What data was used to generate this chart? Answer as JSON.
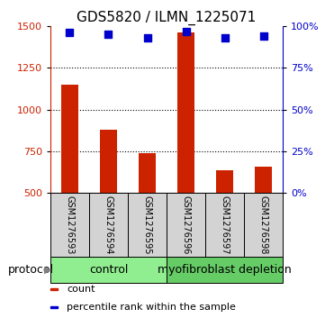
{
  "title": "GDS5820 / ILMN_1225071",
  "samples": [
    "GSM1276593",
    "GSM1276594",
    "GSM1276595",
    "GSM1276596",
    "GSM1276597",
    "GSM1276598"
  ],
  "counts": [
    1150,
    880,
    740,
    1460,
    635,
    660
  ],
  "percentile_ranks": [
    96,
    95,
    93,
    97,
    93,
    94
  ],
  "ylim_left": [
    500,
    1500
  ],
  "ylim_right": [
    0,
    100
  ],
  "yticks_left": [
    500,
    750,
    1000,
    1250,
    1500
  ],
  "yticks_right": [
    0,
    25,
    50,
    75,
    100
  ],
  "bar_color": "#cc2200",
  "dot_color": "#0000cc",
  "bar_width": 0.45,
  "groups": [
    {
      "label": "control",
      "samples": [
        0,
        1,
        2
      ],
      "color": "#90ee90"
    },
    {
      "label": "myofibroblast depletion",
      "samples": [
        3,
        4,
        5
      ],
      "color": "#66cc66"
    }
  ],
  "protocol_label": "protocol",
  "legend_items": [
    {
      "color": "#cc2200",
      "label": "count"
    },
    {
      "color": "#0000cc",
      "label": "percentile rank within the sample"
    }
  ],
  "grid_linestyle": "dotted",
  "grid_linewidth": 0.8,
  "sample_box_color": "#d3d3d3",
  "title_fontsize": 11,
  "tick_fontsize": 8,
  "sample_label_fontsize": 7,
  "group_label_fontsize": 9,
  "legend_fontsize": 8,
  "protocol_fontsize": 9
}
